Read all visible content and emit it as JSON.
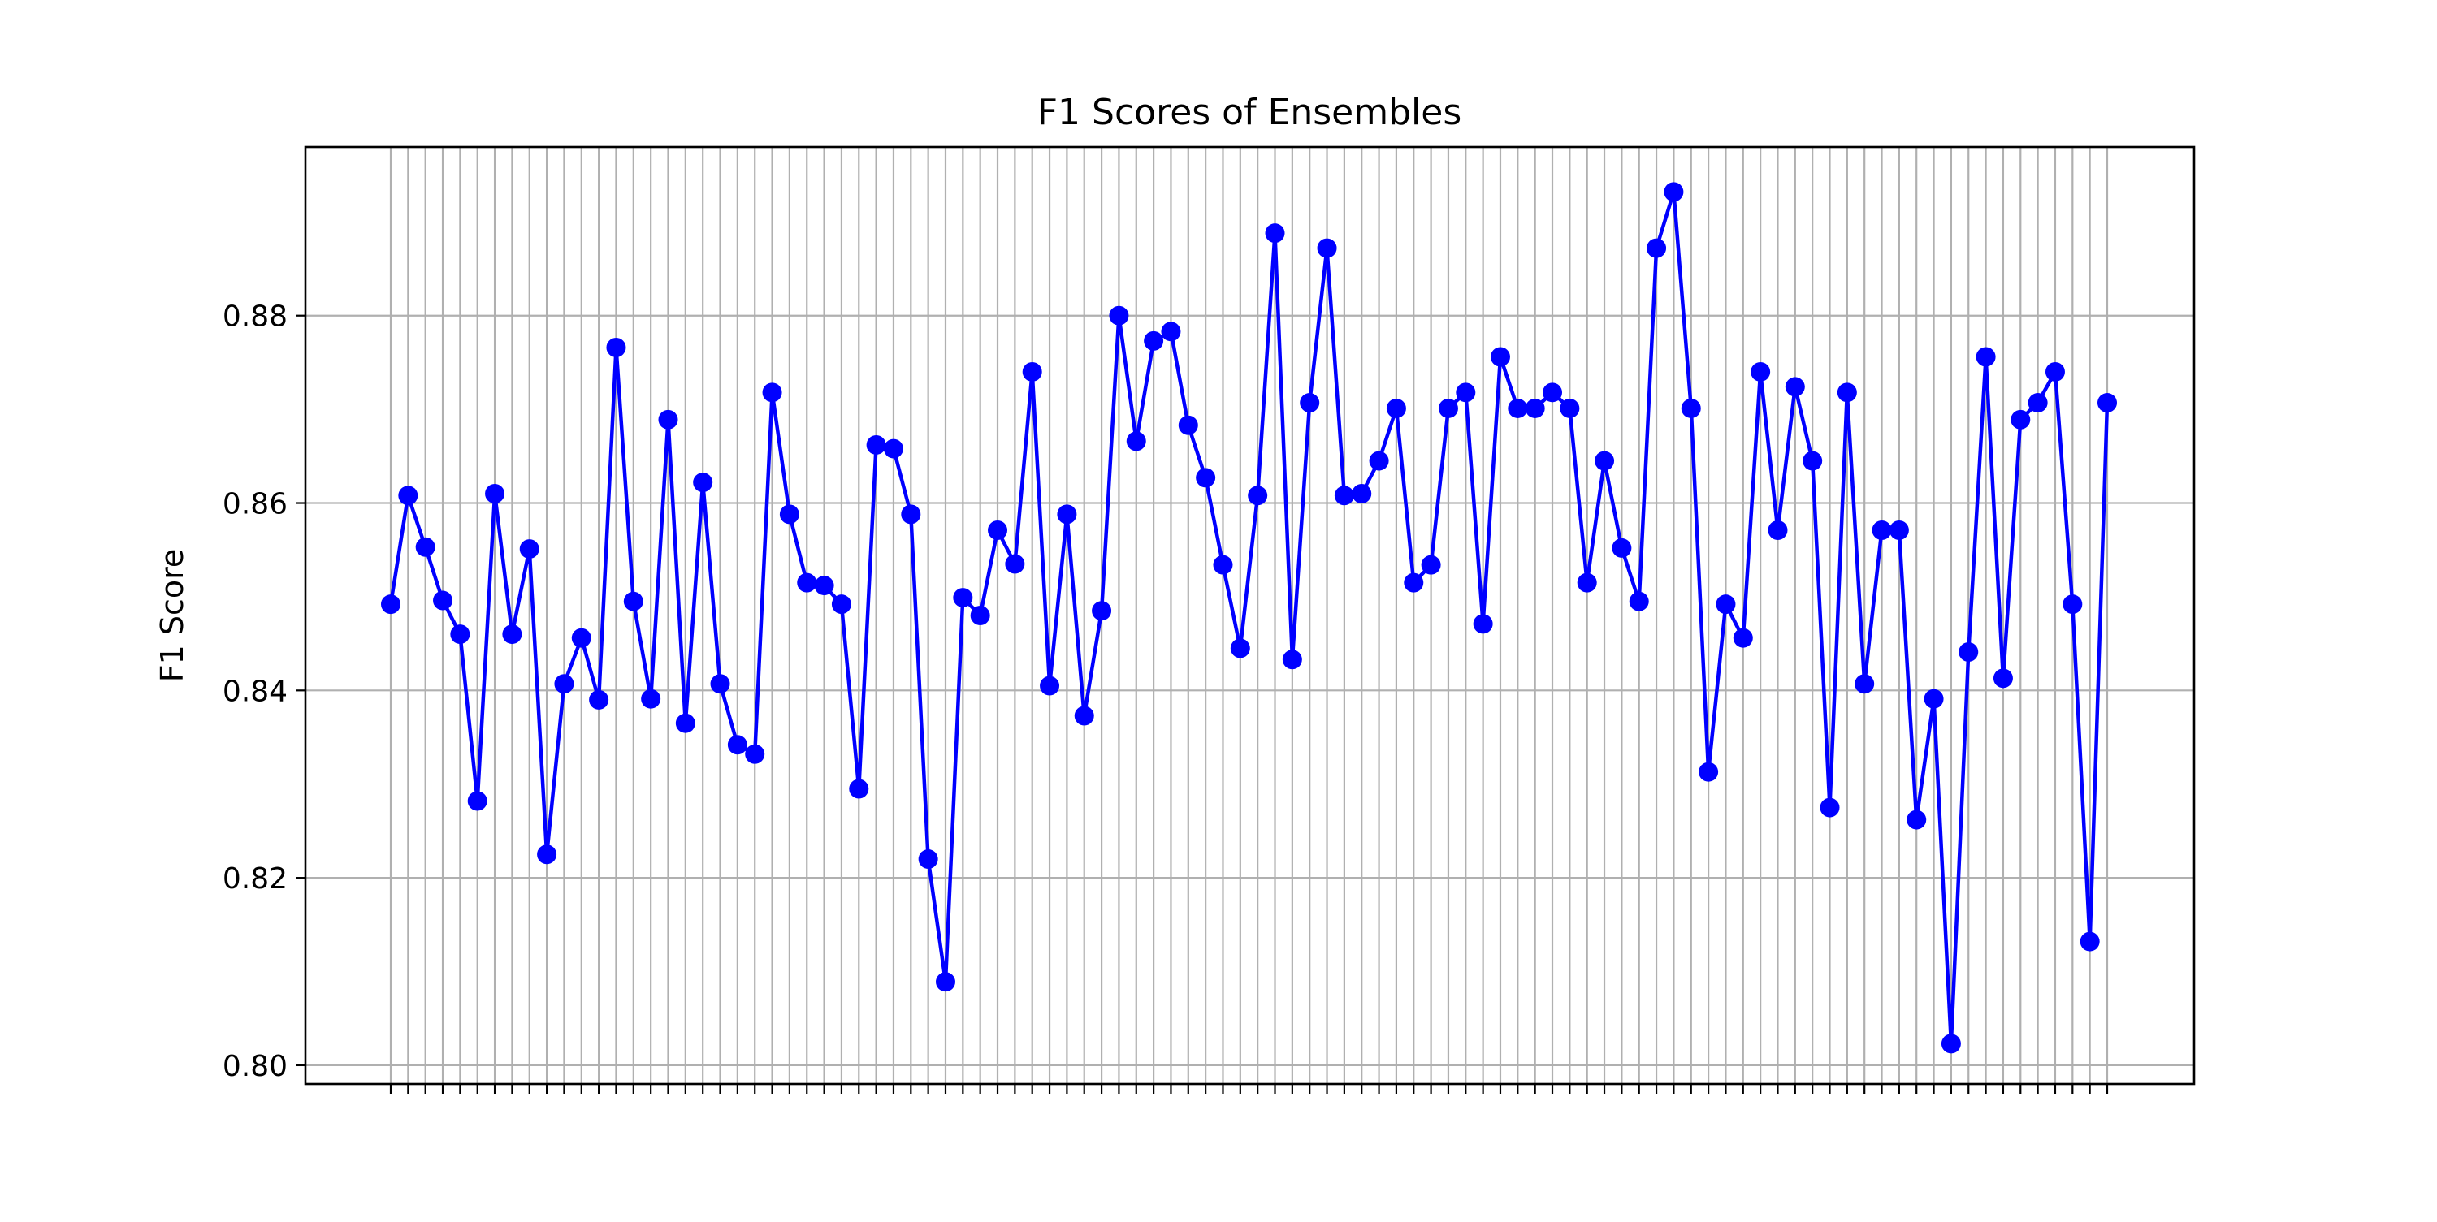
{
  "chart_data": {
    "type": "line",
    "title": "F1 Scores of Ensembles",
    "xlabel": "",
    "ylabel": "F1 Score",
    "ylim": [
      0.798,
      0.898
    ],
    "yticks": [
      "0.80",
      "0.82",
      "0.84",
      "0.86",
      "0.88"
    ],
    "ytick_values": [
      0.8,
      0.82,
      0.84,
      0.86,
      0.88
    ],
    "grid": true,
    "color": "#0000ff",
    "x_tick_labels_legible": false,
    "values": [
      0.8492,
      0.8608,
      0.8553,
      0.8496,
      0.846,
      0.8282,
      0.861,
      0.846,
      0.8551,
      0.8225,
      0.8407,
      0.8456,
      0.839,
      0.8766,
      0.8495,
      0.8391,
      0.8689,
      0.8365,
      0.8622,
      0.8407,
      0.8342,
      0.8332,
      0.8718,
      0.8588,
      0.8515,
      0.8512,
      0.8492,
      0.8295,
      0.8662,
      0.8658,
      0.8588,
      0.822,
      0.8089,
      0.8499,
      0.848,
      0.8571,
      0.8535,
      0.874,
      0.8405,
      0.8588,
      0.8373,
      0.8485,
      0.88,
      0.8666,
      0.8773,
      0.8783,
      0.8683,
      0.8627,
      0.8534,
      0.8445,
      0.8608,
      0.8888,
      0.8433,
      0.8707,
      0.8872,
      0.8608,
      0.861,
      0.8645,
      0.8701,
      0.8515,
      0.8534,
      0.8701,
      0.8718,
      0.8471,
      0.8756,
      0.8701,
      0.8701,
      0.8718,
      0.8701,
      0.8515,
      0.8645,
      0.8552,
      0.8495,
      0.8872,
      0.8932,
      0.8701,
      0.8313,
      0.8492,
      0.8456,
      0.874,
      0.8571,
      0.8724,
      0.8645,
      0.8275,
      0.8718,
      0.8407,
      0.8571,
      0.8571,
      0.8262,
      0.8391,
      0.8023,
      0.8441,
      0.8756,
      0.8413,
      0.8689,
      0.8707,
      0.874,
      0.8492,
      0.8132,
      0.8707
    ]
  }
}
